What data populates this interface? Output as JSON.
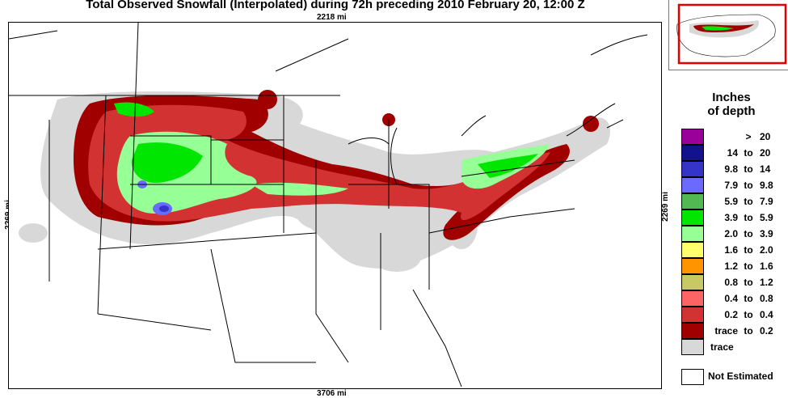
{
  "title": "Total Observed Snowfall (Interpolated) during 72h preceding 2010 February 20, 12:00 Z",
  "map": {
    "top_dim": "2218 mi",
    "bottom_dim": "3706 mi",
    "left_dim": "2269 mi",
    "right_dim": "2269 mi"
  },
  "legend": {
    "title_line1": "Inches",
    "title_line2": "of depth",
    "items": [
      {
        "lo": "",
        "to": ">",
        "hi": "20",
        "color": "#9a009a"
      },
      {
        "lo": "14",
        "to": "to",
        "hi": "20",
        "color": "#12128e"
      },
      {
        "lo": "9.8",
        "to": "to",
        "hi": "14",
        "color": "#3434c8"
      },
      {
        "lo": "7.9",
        "to": "to",
        "hi": "9.8",
        "color": "#6a6aff"
      },
      {
        "lo": "5.9",
        "to": "to",
        "hi": "7.9",
        "color": "#52b852"
      },
      {
        "lo": "3.9",
        "to": "to",
        "hi": "5.9",
        "color": "#00e600"
      },
      {
        "lo": "2.0",
        "to": "to",
        "hi": "3.9",
        "color": "#96ff96"
      },
      {
        "lo": "1.6",
        "to": "to",
        "hi": "2.0",
        "color": "#ffff6e"
      },
      {
        "lo": "1.2",
        "to": "to",
        "hi": "1.6",
        "color": "#ff9400"
      },
      {
        "lo": "0.8",
        "to": "to",
        "hi": "1.2",
        "color": "#c8c864"
      },
      {
        "lo": "0.4",
        "to": "to",
        "hi": "0.8",
        "color": "#ff6464"
      },
      {
        "lo": "0.2",
        "to": "to",
        "hi": "0.4",
        "color": "#d23232"
      },
      {
        "lo": "trace",
        "to": "to",
        "hi": "0.2",
        "color": "#a00000"
      },
      {
        "lo": "trace",
        "to": "",
        "hi": "",
        "color": "#d8d8d8"
      }
    ],
    "not_estimated": {
      "label": "Not Estimated",
      "color": "#ffffff"
    }
  },
  "inset": {
    "highlight_color": "#e00000"
  }
}
